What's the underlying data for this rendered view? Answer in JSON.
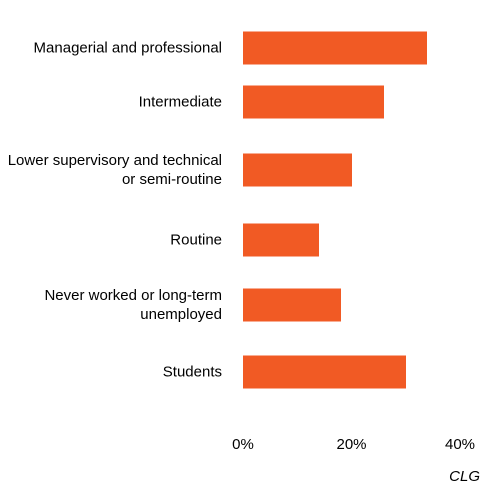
{
  "chart_data": {
    "type": "bar",
    "orientation": "horizontal",
    "categories": [
      "Managerial and professional",
      "Intermediate",
      "Lower supervisory and technical or semi-routine",
      "Routine",
      "Never worked or long-term unemployed",
      "Students"
    ],
    "values": [
      34,
      26,
      20,
      14,
      18,
      30
    ],
    "color": "#f15a24",
    "xlim": [
      0,
      40
    ],
    "xticks": [
      {
        "value": 0,
        "label": "0%"
      },
      {
        "value": 20,
        "label": "20%"
      },
      {
        "value": 40,
        "label": "40%"
      }
    ],
    "source": "CLG"
  }
}
